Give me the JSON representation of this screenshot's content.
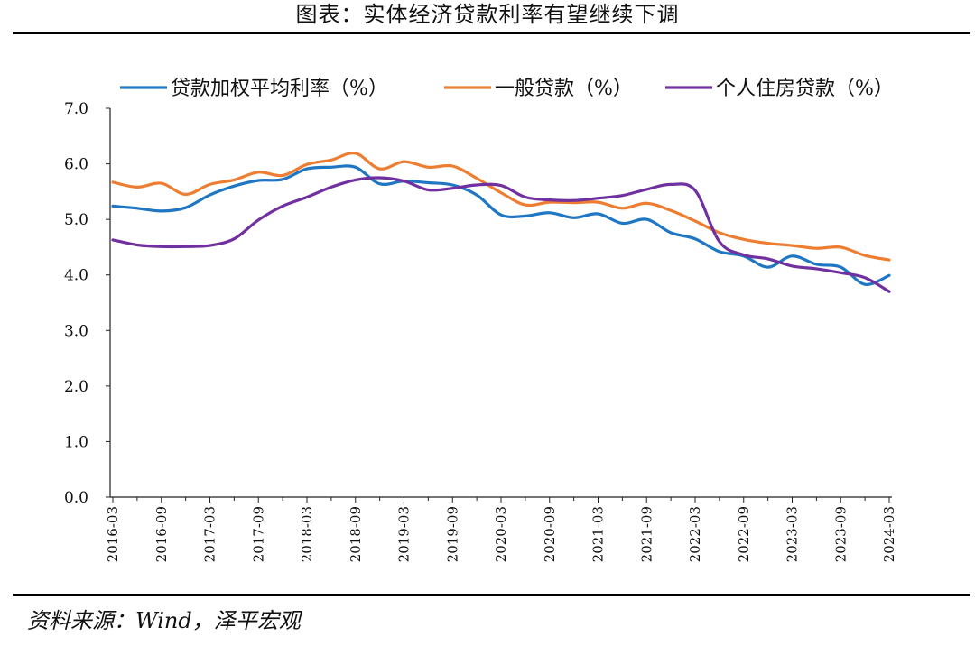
{
  "title": "图表：实体经济贷款利率有望继续下调",
  "source": "资料来源：Wind，泽平宏观",
  "chart_data": {
    "type": "line",
    "title": "图表：实体经济贷款利率有望继续下调",
    "xlabel": "",
    "ylabel": "",
    "ylim": [
      0,
      7
    ],
    "yticks": [
      "0.0",
      "1.0",
      "2.0",
      "3.0",
      "4.0",
      "5.0",
      "6.0",
      "7.0"
    ],
    "xticks": [
      "2016-03",
      "2016-09",
      "2017-03",
      "2017-09",
      "2018-03",
      "2018-09",
      "2019-03",
      "2019-09",
      "2020-03",
      "2020-09",
      "2021-03",
      "2021-09",
      "2022-03",
      "2022-09",
      "2023-03",
      "2023-09",
      "2024-03"
    ],
    "grid": false,
    "legend_position": "top",
    "x": [
      "2016-03",
      "2016-06",
      "2016-09",
      "2016-12",
      "2017-03",
      "2017-06",
      "2017-09",
      "2017-12",
      "2018-03",
      "2018-06",
      "2018-09",
      "2018-12",
      "2019-03",
      "2019-06",
      "2019-09",
      "2019-12",
      "2020-03",
      "2020-06",
      "2020-09",
      "2020-12",
      "2021-03",
      "2021-06",
      "2021-09",
      "2021-12",
      "2022-03",
      "2022-06",
      "2022-09",
      "2022-12",
      "2023-03",
      "2023-06",
      "2023-09",
      "2023-12",
      "2024-03"
    ],
    "series": [
      {
        "name": "贷款加权平均利率（%）",
        "color": "#1f77c4",
        "values": [
          5.24,
          5.2,
          5.15,
          5.21,
          5.44,
          5.6,
          5.7,
          5.72,
          5.91,
          5.94,
          5.94,
          5.64,
          5.69,
          5.66,
          5.62,
          5.44,
          5.08,
          5.06,
          5.12,
          5.03,
          5.1,
          4.93,
          5.0,
          4.76,
          4.65,
          4.42,
          4.34,
          4.14,
          4.34,
          4.19,
          4.14,
          3.83,
          3.99
        ]
      },
      {
        "name": "一般贷款（%）",
        "color": "#ed7d31",
        "values": [
          5.67,
          5.58,
          5.65,
          5.45,
          5.63,
          5.71,
          5.85,
          5.79,
          5.99,
          6.07,
          6.19,
          5.91,
          6.04,
          5.94,
          5.96,
          5.74,
          5.48,
          5.26,
          5.31,
          5.3,
          5.31,
          5.2,
          5.29,
          5.16,
          4.97,
          4.76,
          4.64,
          4.57,
          4.53,
          4.48,
          4.5,
          4.35,
          4.27
        ]
      },
      {
        "name": "个人住房贷款（%）",
        "color": "#7030a0",
        "values": [
          4.63,
          4.54,
          4.51,
          4.51,
          4.53,
          4.65,
          4.99,
          5.24,
          5.4,
          5.58,
          5.71,
          5.75,
          5.69,
          5.53,
          5.56,
          5.62,
          5.61,
          5.4,
          5.35,
          5.34,
          5.38,
          5.43,
          5.54,
          5.63,
          5.52,
          4.6,
          4.36,
          4.29,
          4.16,
          4.11,
          4.04,
          3.95,
          3.7
        ]
      }
    ]
  }
}
